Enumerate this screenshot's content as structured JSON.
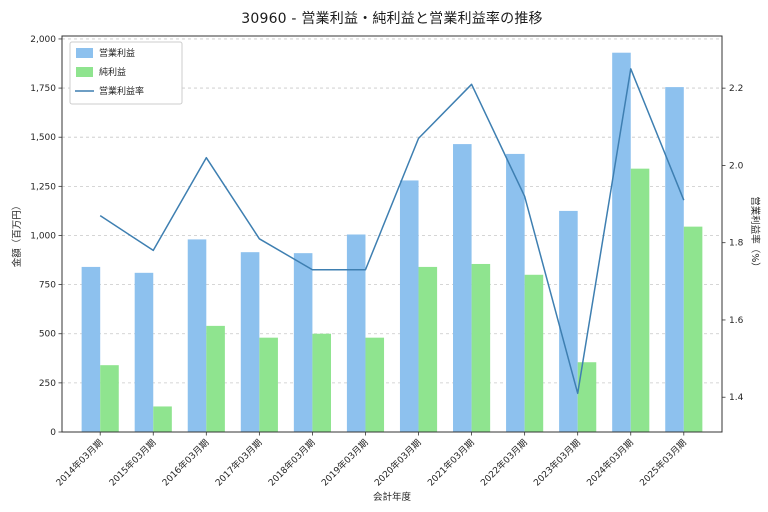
{
  "figure": {
    "title": "30960 - 営業利益・純利益と営業利益率の推移"
  },
  "chart_data": {
    "type": "bar+line",
    "title": "30960 - 営業利益・純利益と営業利益率の推移",
    "xlabel": "会計年度",
    "ylabel_left": "金額（百万円）",
    "ylabel_right": "営業利益率（%）",
    "categories": [
      "2014年03月期",
      "2015年03月期",
      "2016年03月期",
      "2017年03月期",
      "2018年03月期",
      "2019年03月期",
      "2020年03月期",
      "2021年03月期",
      "2022年03月期",
      "2023年03月期",
      "2024年03月期",
      "2025年03月期"
    ],
    "series": [
      {
        "key": "operating-profit",
        "name": "営業利益",
        "type": "bar",
        "axis": "left",
        "color": "#8DC1EE",
        "values": [
          840,
          810,
          980,
          915,
          910,
          1005,
          1280,
          1465,
          1415,
          1125,
          1930,
          1755
        ]
      },
      {
        "key": "net-profit",
        "name": "純利益",
        "type": "bar",
        "axis": "left",
        "color": "#8FE48F",
        "values": [
          340,
          130,
          540,
          480,
          500,
          480,
          840,
          855,
          800,
          355,
          1340,
          1045
        ]
      },
      {
        "key": "operating-margin",
        "name": "営業利益率",
        "type": "line",
        "axis": "right",
        "color": "#3E7FB1",
        "values": [
          1.87,
          1.78,
          2.02,
          1.81,
          1.73,
          1.73,
          2.07,
          2.21,
          1.92,
          1.41,
          2.25,
          1.91
        ]
      }
    ],
    "left_axis": {
      "min": 0,
      "max": 2015,
      "ticks": [
        {
          "v": 0,
          "label": "0"
        },
        {
          "v": 250,
          "label": "250"
        },
        {
          "v": 500,
          "label": "500"
        },
        {
          "v": 750,
          "label": "750"
        },
        {
          "v": 1000,
          "label": "1,000"
        },
        {
          "v": 1250,
          "label": "1,250"
        },
        {
          "v": 1500,
          "label": "1,500"
        },
        {
          "v": 1750,
          "label": "1,750"
        },
        {
          "v": 2000,
          "label": "2,000"
        }
      ]
    },
    "right_axis": {
      "min": 1.31,
      "max": 2.335,
      "ticks": [
        {
          "v": 1.4,
          "label": "1.4"
        },
        {
          "v": 1.6,
          "label": "1.6"
        },
        {
          "v": 1.8,
          "label": "1.8"
        },
        {
          "v": 2.0,
          "label": "2.0"
        },
        {
          "v": 2.2,
          "label": "2.2"
        }
      ]
    },
    "x_axis": {
      "min": -0.72,
      "max": 11.72,
      "bar_width": 0.35,
      "bar_offset": 0.175
    },
    "grid": true,
    "legend_position": "upper-left",
    "colors": {
      "grid": "#c8c8c8",
      "spine": "#333333",
      "text": "#262626",
      "background": "#ffffff",
      "legend_border": "#cccccc"
    }
  }
}
